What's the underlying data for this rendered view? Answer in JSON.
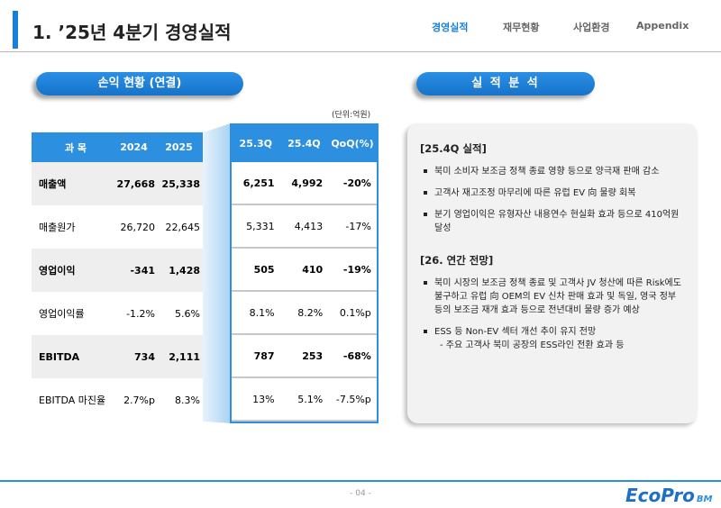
{
  "header": {
    "title": "1. ’25년 4분기 경영실적",
    "nav": [
      "경영실적",
      "재무현황",
      "사업환경",
      "Appendix"
    ]
  },
  "left_panel": {
    "title": "손익 현황 (연결)",
    "unit": "(단위:억원)",
    "table": {
      "header": [
        "과 목",
        "2024",
        "2025",
        "25.3Q",
        "25.4Q",
        "QoQ(%)"
      ],
      "rows": [
        [
          "매출액",
          "27,668",
          "25,338",
          "6,251",
          "4,992",
          "-20%"
        ],
        [
          "매출원가",
          "26,720",
          "22,645",
          "5,331",
          "4,413",
          "-17%"
        ],
        [
          "영업이익",
          "-341",
          "1,428",
          "505",
          "410",
          "-19%"
        ],
        [
          "영업이익률",
          "-1.2%",
          "5.6%",
          "8.1%",
          "8.2%",
          "0.1%p"
        ],
        [
          "EBITDA",
          "734",
          "2,111",
          "787",
          "253",
          "-68%"
        ],
        [
          "EBITDA 마진율",
          "2.7%p",
          "8.3%",
          "13%",
          "5.1%",
          "-7.5%p"
        ]
      ]
    }
  },
  "right_panel": {
    "title": "실 적 분 석",
    "sections": [
      {
        "heading": "[25.4Q 실적]",
        "bullets": [
          "북미 소비자 보조금 정책 종료 영향 등으로 양극재 판매 감소",
          "고객사 재고조정 마무리에 따른 유럽 EV 向 물량 회복",
          "분기 영업이익은 유형자산 내용연수 현실화 효과 등으로 410억원 달성"
        ]
      },
      {
        "heading": "[26. 연간 전망]",
        "bullets": [
          "북미 시장의 보조금 정책 종료 및 고객사 JV 청산에 따른 Risk에도 불구하고 유럽 向 OEM의 EV 신차 판매 효과 및 독일, 영국 정부 등의 보조금 재개 효과 등으로 전년대비 물량 증가 예상",
          "ESS 등 Non-EV 섹터 개선 추이 유지 전망"
        ],
        "sub_bullet": "- 주요 고객사 북미 공장의 ESS라인 전환 효과 등"
      }
    ]
  },
  "footer": {
    "page": "- 04 -",
    "logo": "EcoPro",
    "logo_suffix": "BM"
  }
}
